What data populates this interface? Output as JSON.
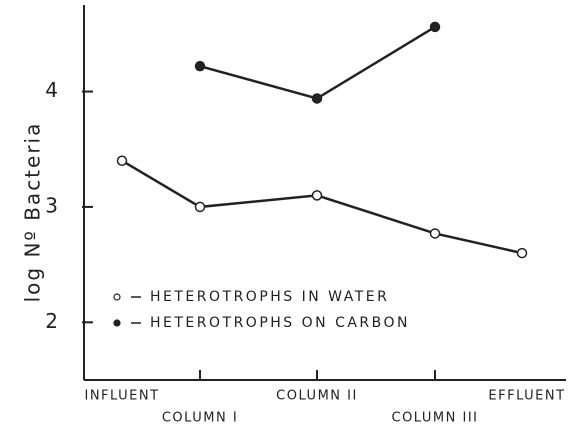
{
  "chart_data": {
    "type": "line",
    "y_label": "log Nº Bacteria",
    "categories": [
      "INFLUENT",
      "COLUMN I",
      "COLUMN II",
      "COLUMN III",
      "EFFLUENT"
    ],
    "series": [
      {
        "name": "HETEROTROPHS IN WATER",
        "color": "#222222",
        "marker": "open",
        "values": [
          3.4,
          3.0,
          3.1,
          2.77,
          2.6
        ]
      },
      {
        "name": "HETEROTROPHS ON CARBON",
        "color": "#222222",
        "marker": "filled",
        "values": [
          null,
          4.22,
          3.94,
          4.56,
          null
        ]
      }
    ],
    "ylim": [
      1.5,
      4.75
    ],
    "yticks": [
      2,
      3,
      4
    ],
    "grid": false
  }
}
